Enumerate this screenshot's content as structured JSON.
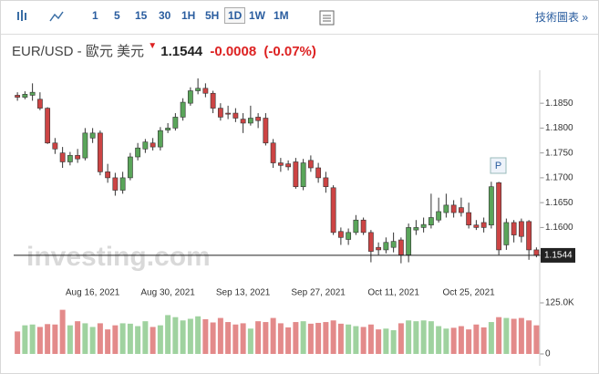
{
  "toolbar": {
    "intervals": [
      "1",
      "5",
      "15",
      "30",
      "1H",
      "5H",
      "1D",
      "1W",
      "1M"
    ],
    "active": "1D",
    "link": "技術圖表 »"
  },
  "header": {
    "instrument": "EUR/USD - 歐元 美元",
    "price": "1.1544",
    "change": "-0.0008",
    "change_pct": "(-0.07%)"
  },
  "watermark": "investing.com",
  "marker_label": "P",
  "chart_data": [
    {
      "type": "candlestick",
      "categories": [
        null,
        null,
        null,
        null,
        null,
        null,
        null,
        null,
        null,
        null,
        "Aug 16, 2021",
        null,
        null,
        null,
        null,
        null,
        null,
        null,
        null,
        null,
        "Aug 30, 2021",
        null,
        null,
        null,
        null,
        null,
        null,
        null,
        null,
        null,
        "Sep 13, 2021",
        null,
        null,
        null,
        null,
        null,
        null,
        null,
        null,
        null,
        "Sep 27, 2021",
        null,
        null,
        null,
        null,
        null,
        null,
        null,
        null,
        null,
        "Oct 11, 2021",
        null,
        null,
        null,
        null,
        null,
        null,
        null,
        null,
        null,
        "Oct 25, 2021",
        null,
        null,
        null,
        null,
        null,
        null,
        null,
        null,
        null
      ],
      "open": [
        1.1866,
        1.1862,
        1.1866,
        1.1858,
        1.184,
        1.177,
        1.175,
        1.1732,
        1.1745,
        1.174,
        1.178,
        1.179,
        1.1712,
        1.17,
        1.1675,
        1.17,
        1.1742,
        1.1758,
        1.177,
        1.1762,
        1.1796,
        1.18,
        1.1822,
        1.185,
        1.1875,
        1.188,
        1.187,
        1.184,
        1.183,
        1.183,
        1.1818,
        1.181,
        1.1822,
        1.182,
        1.177,
        1.173,
        1.1728,
        1.1732,
        1.1682,
        1.1735,
        1.172,
        1.17,
        1.168,
        1.1592,
        1.1576,
        1.159,
        1.1615,
        1.159,
        1.156,
        1.1555,
        1.156,
        1.1575,
        1.1545,
        1.1595,
        1.16,
        1.1605,
        1.1615,
        1.163,
        1.1645,
        1.164,
        1.163,
        1.1605,
        1.161,
        1.1605,
        1.169,
        1.1565,
        1.161,
        1.1612,
        1.1612,
        1.1555
      ],
      "high": [
        1.1872,
        1.1874,
        1.189,
        1.1872,
        1.1842,
        1.178,
        1.1762,
        1.1752,
        1.1758,
        1.18,
        1.18,
        1.1795,
        1.1728,
        1.171,
        1.1712,
        1.175,
        1.177,
        1.1778,
        1.178,
        1.1802,
        1.181,
        1.183,
        1.186,
        1.1882,
        1.19,
        1.189,
        1.1875,
        1.185,
        1.1845,
        1.184,
        1.183,
        1.1845,
        1.183,
        1.183,
        1.1778,
        1.174,
        1.1735,
        1.174,
        1.1738,
        1.1745,
        1.173,
        1.1712,
        1.1685,
        1.16,
        1.1598,
        1.1625,
        1.162,
        1.1595,
        1.157,
        1.158,
        1.159,
        1.158,
        1.1608,
        1.1615,
        1.162,
        1.1668,
        1.166,
        1.1668,
        1.1655,
        1.166,
        1.165,
        1.1615,
        1.162,
        1.1692,
        1.1692,
        1.1618,
        1.1615,
        1.1618,
        1.1615,
        1.156
      ],
      "low": [
        1.1855,
        1.1858,
        1.1855,
        1.1836,
        1.1768,
        1.1748,
        1.172,
        1.1725,
        1.173,
        1.1735,
        1.177,
        1.1705,
        1.169,
        1.1664,
        1.1668,
        1.1695,
        1.1735,
        1.175,
        1.1755,
        1.1755,
        1.179,
        1.1795,
        1.1815,
        1.1845,
        1.1868,
        1.1862,
        1.183,
        1.1815,
        1.1818,
        1.1812,
        1.179,
        1.1805,
        1.18,
        1.1765,
        1.172,
        1.1712,
        1.1715,
        1.1678,
        1.1675,
        1.1712,
        1.169,
        1.167,
        1.1585,
        1.1565,
        1.1565,
        1.1585,
        1.1585,
        1.153,
        1.1545,
        1.1548,
        1.155,
        1.1528,
        1.153,
        1.1585,
        1.159,
        1.1598,
        1.161,
        1.162,
        1.162,
        1.1622,
        1.1598,
        1.1595,
        1.159,
        1.1598,
        1.1545,
        1.1555,
        1.157,
        1.157,
        1.1535,
        1.154
      ],
      "close": [
        1.1862,
        1.1868,
        1.1872,
        1.184,
        1.177,
        1.1758,
        1.1732,
        1.1745,
        1.1738,
        1.179,
        1.179,
        1.1712,
        1.17,
        1.1675,
        1.17,
        1.1742,
        1.176,
        1.1772,
        1.1762,
        1.1795,
        1.18,
        1.1822,
        1.1852,
        1.1875,
        1.188,
        1.187,
        1.184,
        1.1822,
        1.1828,
        1.182,
        1.181,
        1.182,
        1.1815,
        1.177,
        1.173,
        1.1725,
        1.1722,
        1.1682,
        1.173,
        1.172,
        1.17,
        1.1682,
        1.159,
        1.158,
        1.159,
        1.1615,
        1.159,
        1.1552,
        1.1555,
        1.157,
        1.1572,
        1.1545,
        1.16,
        1.16,
        1.1606,
        1.162,
        1.1632,
        1.1645,
        1.163,
        1.163,
        1.1605,
        1.16,
        1.16,
        1.1682,
        1.1555,
        1.161,
        1.1585,
        1.1582,
        1.1555,
        1.1544
      ],
      "up_color": "#5aa55a",
      "down_color": "#cc4444",
      "ylim": [
        1.152,
        1.1909
      ],
      "yticks": [
        {
          "value": 1.185,
          "label": "1.1850"
        },
        {
          "value": 1.18,
          "label": "1.1800"
        },
        {
          "value": 1.175,
          "label": "1.1750"
        },
        {
          "value": 1.17,
          "label": "1.1700"
        },
        {
          "value": 1.165,
          "label": "1.1650"
        },
        {
          "value": 1.16,
          "label": "1.1600"
        }
      ]
    },
    {
      "type": "bar",
      "values": [
        55000,
        70000,
        72000,
        66000,
        73000,
        72000,
        108000,
        70000,
        80000,
        75000,
        66000,
        75000,
        60000,
        70000,
        75000,
        74000,
        68000,
        80000,
        66000,
        70000,
        95000,
        90000,
        82000,
        86000,
        92000,
        85000,
        77000,
        88000,
        78000,
        72000,
        75000,
        62000,
        80000,
        78000,
        88000,
        75000,
        65000,
        78000,
        80000,
        74000,
        76000,
        78000,
        82000,
        74000,
        72000,
        68000,
        66000,
        72000,
        60000,
        62000,
        58000,
        75000,
        82000,
        80000,
        82000,
        80000,
        68000,
        62000,
        64000,
        68000,
        60000,
        72000,
        65000,
        78000,
        90000,
        88000,
        86000,
        88000,
        82000,
        70000
      ],
      "up_color": "#9fd29f",
      "down_color": "#e38a8a",
      "ylim": [
        0,
        125000
      ],
      "yticks": [
        {
          "value": 125000,
          "label": "125.0K"
        },
        0
      ]
    }
  ]
}
